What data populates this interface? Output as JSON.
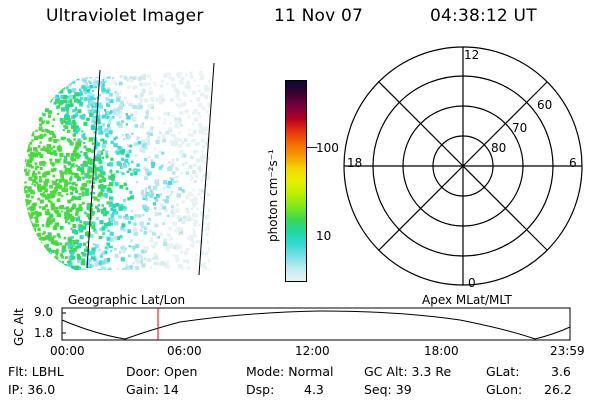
{
  "header": {
    "title": "Ultraviolet Imager",
    "date": "11 Nov 07",
    "time": "04:38:12 UT"
  },
  "colorbar": {
    "unit": "photon cm⁻²s⁻¹",
    "ticks": [
      "100",
      "10"
    ],
    "colors": [
      "#0a0a3a",
      "#3a0030",
      "#7a0040",
      "#b8001e",
      "#e83010",
      "#f06a00",
      "#f4a000",
      "#f4d800",
      "#e8f000",
      "#bdf000",
      "#7ce820",
      "#3cd850",
      "#20d8a0",
      "#30d8d0",
      "#80e0e8",
      "#c0ecf0",
      "#e8f4f4"
    ]
  },
  "polar_plot": {
    "mlt_labels": [
      "12",
      "18",
      "6",
      "0"
    ],
    "lat_labels": [
      "60",
      "70",
      "80"
    ]
  },
  "timeline": {
    "ylabel": "GC Alt",
    "y_ticks": [
      "9.0",
      "1.8"
    ],
    "left_title": "Geographic Lat/Lon",
    "right_title": "Apex MLat/MLT",
    "time_ticks": [
      "00:00",
      "06:00",
      "12:00",
      "18:00",
      "23:59"
    ]
  },
  "info": {
    "flt": "Flt: LBHL",
    "door": "Door: Open",
    "mode": "Mode: Normal",
    "gc_alt": "GC Alt: 3.3 Re",
    "glat": "GLat:",
    "glat_value": "3.6",
    "ip": "IP: 36.0",
    "gain": "Gain: 14",
    "dsp": "Dsp:",
    "dsp_value": "4.3",
    "seq": "Seq: 39",
    "glon": "GLon:",
    "glon_value": "26.2"
  }
}
